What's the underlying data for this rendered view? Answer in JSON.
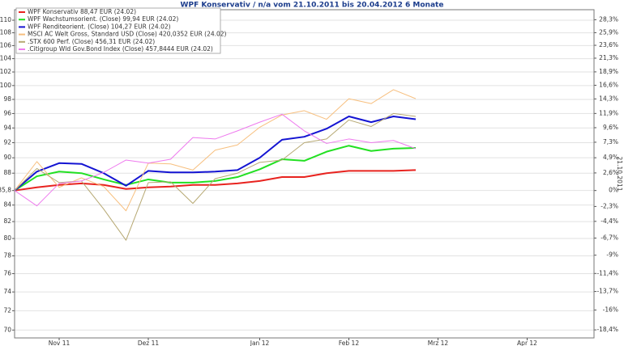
{
  "chart_data": {
    "type": "line",
    "title": "WPF Konservativ / n/a vom 21.10.2011 bis 20.04.2012 6 Monate",
    "y2label": "21.10.2011",
    "categories": [
      null,
      null,
      "Nov 11",
      null,
      null,
      null,
      "Dez 11",
      null,
      null,
      null,
      null,
      "Jan 12",
      null,
      null,
      null,
      "Feb 12",
      null,
      null,
      null,
      "Mrz 12",
      null,
      null,
      null,
      "Apr 12",
      null,
      null,
      null
    ],
    "series": [
      {
        "name": "WPF Konservativ 88,47 EUR (24.02)",
        "color": "#e8231f",
        "width": 2,
        "values": [
          85.8,
          86.2,
          86.5,
          86.7,
          86.5,
          86.0,
          86.2,
          86.3,
          86.5,
          86.5,
          86.7,
          87.0,
          87.5,
          87.5,
          88.0,
          88.3,
          88.3,
          88.3,
          88.4,
          null,
          null,
          null,
          null,
          null,
          null,
          null,
          null
        ]
      },
      {
        "name": "WPF Wachstumsorient. (Close) 99,94 EUR (24.02)",
        "color": "#22e022",
        "width": 2,
        "values": [
          85.8,
          87.6,
          88.2,
          88.0,
          87.2,
          86.5,
          87.2,
          86.8,
          86.8,
          87.0,
          87.5,
          88.5,
          89.8,
          89.6,
          90.8,
          91.6,
          90.9,
          91.2,
          91.3,
          null,
          null,
          null,
          null,
          null,
          null,
          null,
          null
        ]
      },
      {
        "name": "WPF Renditeorient. (Close) 104,27 EUR (24.02)",
        "color": "#1414d2",
        "width": 2,
        "values": [
          85.8,
          88.2,
          89.3,
          89.2,
          88.0,
          86.4,
          88.3,
          88.1,
          88.1,
          88.2,
          88.4,
          90.0,
          92.4,
          92.8,
          93.9,
          95.6,
          94.8,
          95.6,
          95.2,
          null,
          null,
          null,
          null,
          null,
          null,
          null,
          null
        ]
      },
      {
        "name": "MSCI AC Welt Gross, Standard USD (Close) 420,0352 EUR (24.02)",
        "color": "#f7bf7e",
        "width": 1,
        "values": [
          85.8,
          89.5,
          86.2,
          87.4,
          86.3,
          83.3,
          89.3,
          89.2,
          88.4,
          91.0,
          91.7,
          94.1,
          95.8,
          96.4,
          95.2,
          98.1,
          97.4,
          99.4,
          98.1,
          null,
          null,
          null,
          null,
          null,
          null,
          null,
          null
        ]
      },
      {
        "name": ".STX 600 Perf. (Close) 456,31 EUR (24.02)",
        "color": "#b6a872",
        "width": 1,
        "values": [
          85.8,
          88.6,
          86.8,
          87.0,
          83.5,
          79.8,
          86.8,
          86.9,
          84.2,
          87.3,
          88.0,
          89.4,
          89.7,
          92.0,
          92.5,
          95.1,
          94.2,
          96.0,
          95.6,
          null,
          null,
          null,
          null,
          null,
          null,
          null,
          null
        ]
      },
      {
        "name": ".Citigroup Wld Gov.Bond Index (Close) 457,8444 EUR (24.02)",
        "color": "#ee7aee",
        "width": 1,
        "values": [
          85.8,
          83.9,
          86.7,
          87.0,
          88.1,
          89.7,
          89.3,
          89.8,
          92.7,
          92.5,
          93.6,
          94.8,
          95.9,
          93.6,
          91.9,
          92.5,
          92.0,
          92.3,
          91.2,
          null,
          null,
          null,
          null,
          null,
          null,
          null,
          null
        ]
      }
    ],
    "ylim": [
      69.2,
      111.7
    ],
    "ylog": true,
    "yticks": [
      70,
      72,
      74,
      76,
      78,
      80,
      82,
      84,
      {
        "value": 85.8,
        "label": "85,8"
      },
      88,
      90,
      92,
      94,
      96,
      98,
      100,
      102,
      104,
      106,
      108,
      110
    ],
    "y2lim": [
      -19.35,
      30.19
    ],
    "y2log": true,
    "y2ticks": [
      {
        "value": 28.3,
        "label": "28,3%"
      },
      {
        "value": 25.9,
        "label": "25,9%"
      },
      {
        "value": 23.6,
        "label": "23,6%"
      },
      {
        "value": 21.3,
        "label": "21,3%"
      },
      {
        "value": 18.9,
        "label": "18,9%"
      },
      {
        "value": 16.6,
        "label": "16,6%"
      },
      {
        "value": 14.3,
        "label": "14,3%"
      },
      {
        "value": 11.9,
        "label": "11,9%"
      },
      {
        "value": 9.6,
        "label": "9,6%"
      },
      {
        "value": 7.3,
        "label": "7,3%"
      },
      {
        "value": 4.9,
        "label": "4,9%"
      },
      {
        "value": 2.6,
        "label": "2,6%"
      },
      {
        "value": 0,
        "label": "0%"
      },
      {
        "value": -2.3,
        "label": "-2,3%"
      },
      {
        "value": -4.4,
        "label": "-4,4%"
      },
      {
        "value": -6.7,
        "label": "-6,7%"
      },
      {
        "value": -9,
        "label": "-9%"
      },
      {
        "value": -11.4,
        "label": "-11,4%"
      },
      {
        "value": -13.7,
        "label": "-13,7%"
      },
      {
        "value": -16,
        "label": "-16%"
      },
      {
        "value": -18.4,
        "label": "-18,4%"
      }
    ],
    "grid": true,
    "legend": "top-left"
  }
}
